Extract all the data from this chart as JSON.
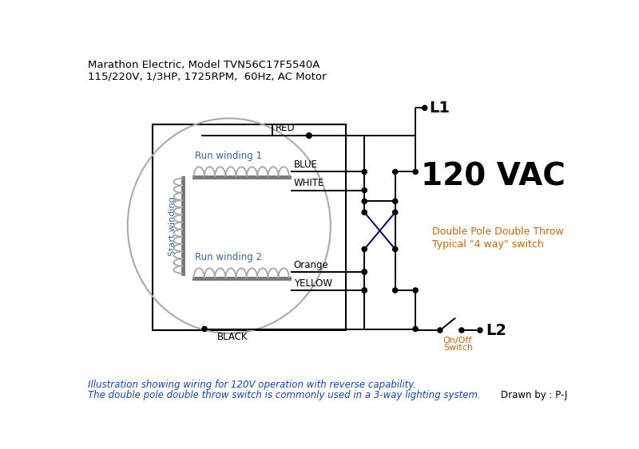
{
  "title_line1": "Marathon Electric, Model TVN56C17F5540A",
  "title_line2": "115/220V, 1/3HP, 1725RPM,  60Hz, AC Motor",
  "footer_line1": "Illustration showing wiring for 120V operation with reverse capability.",
  "footer_line2": "The double pole double throw switch is commonly used in a 3-way lighting system.",
  "footer_right": "Drawn by : P-J",
  "vac_label": "120 VAC",
  "L1_label": "L1",
  "L2_label": "L2",
  "dpdt_label1": "Double Pole Double Throw",
  "dpdt_label2": "Typical \"4 way\" switch",
  "onoff_label1": "On/Off",
  "onoff_label2": "Switch",
  "bg_color": "#ffffff",
  "line_color": "#000000",
  "blue_text_color": "#3366aa",
  "orange_text_color": "#cc6600",
  "title_color": "#000000",
  "footer_color": "#1144bb"
}
